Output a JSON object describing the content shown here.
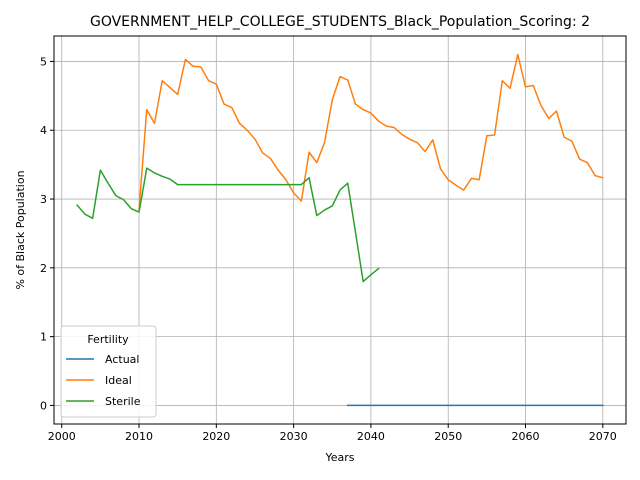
{
  "chart_data": {
    "type": "line",
    "title": "GOVERNMENT_HELP_COLLEGE_STUDENTS_Black_Population_Scoring: 2",
    "xlabel": "Years",
    "ylabel": "% of Black Population",
    "xlim": [
      1999,
      2073
    ],
    "ylim": [
      -0.27,
      5.37
    ],
    "xticks": [
      2000,
      2010,
      2020,
      2030,
      2040,
      2050,
      2060,
      2070
    ],
    "yticks": [
      0,
      1,
      2,
      3,
      4,
      5
    ],
    "grid": true,
    "legend": {
      "title": "Fertility",
      "placement": "lower-left"
    },
    "series": [
      {
        "name": "Actual",
        "color": "#1f77b4",
        "x": [
          2037,
          2040,
          2045,
          2050,
          2055,
          2060,
          2065,
          2070
        ],
        "y": [
          0,
          0,
          0,
          0,
          0,
          0,
          0,
          0
        ]
      },
      {
        "name": "Ideal",
        "color": "#ff7f0e",
        "x": [
          2010,
          2011,
          2012,
          2013,
          2014,
          2015,
          2016,
          2017,
          2018,
          2019,
          2020,
          2021,
          2022,
          2023,
          2024,
          2025,
          2026,
          2027,
          2028,
          2029,
          2030,
          2031,
          2032,
          2033,
          2034,
          2035,
          2036,
          2037,
          2038,
          2039,
          2040,
          2041,
          2042,
          2043,
          2044,
          2045,
          2046,
          2047,
          2048,
          2049,
          2050,
          2051,
          2052,
          2053,
          2054,
          2055,
          2056,
          2057,
          2058,
          2059,
          2060,
          2061,
          2062,
          2063,
          2064,
          2065,
          2066,
          2067,
          2068,
          2069,
          2070
        ],
        "y": [
          2.85,
          4.3,
          4.1,
          4.72,
          4.62,
          4.52,
          5.03,
          4.93,
          4.92,
          4.72,
          4.67,
          4.38,
          4.33,
          4.1,
          4.0,
          3.87,
          3.67,
          3.59,
          3.42,
          3.28,
          3.09,
          2.97,
          3.68,
          3.53,
          3.82,
          4.44,
          4.78,
          4.73,
          4.38,
          4.3,
          4.25,
          4.13,
          4.06,
          4.04,
          3.94,
          3.87,
          3.82,
          3.69,
          3.86,
          3.44,
          3.28,
          3.2,
          3.13,
          3.3,
          3.28,
          3.92,
          3.93,
          4.72,
          4.61,
          5.1,
          4.63,
          4.65,
          4.36,
          4.17,
          4.28,
          3.9,
          3.84,
          3.58,
          3.53,
          3.34,
          3.31
        ]
      },
      {
        "name": "Sterile",
        "color": "#2ca02c",
        "x": [
          2002,
          2003,
          2004,
          2005,
          2006,
          2007,
          2008,
          2009,
          2010,
          2011,
          2012,
          2013,
          2014,
          2015,
          2016,
          2017,
          2018,
          2019,
          2020,
          2021,
          2022,
          2023,
          2024,
          2025,
          2026,
          2027,
          2028,
          2029,
          2030,
          2031,
          2032,
          2033,
          2034,
          2035,
          2036,
          2037,
          2038,
          2039,
          2040,
          2041
        ],
        "y": [
          2.91,
          2.78,
          2.72,
          3.42,
          3.23,
          3.05,
          2.99,
          2.86,
          2.81,
          3.45,
          3.38,
          3.33,
          3.29,
          3.21,
          3.21,
          3.21,
          3.21,
          3.21,
          3.21,
          3.21,
          3.21,
          3.21,
          3.21,
          3.21,
          3.21,
          3.21,
          3.21,
          3.21,
          3.21,
          3.21,
          3.31,
          2.76,
          2.84,
          2.9,
          3.13,
          3.23,
          2.52,
          1.8,
          1.9,
          1.99
        ]
      }
    ]
  }
}
